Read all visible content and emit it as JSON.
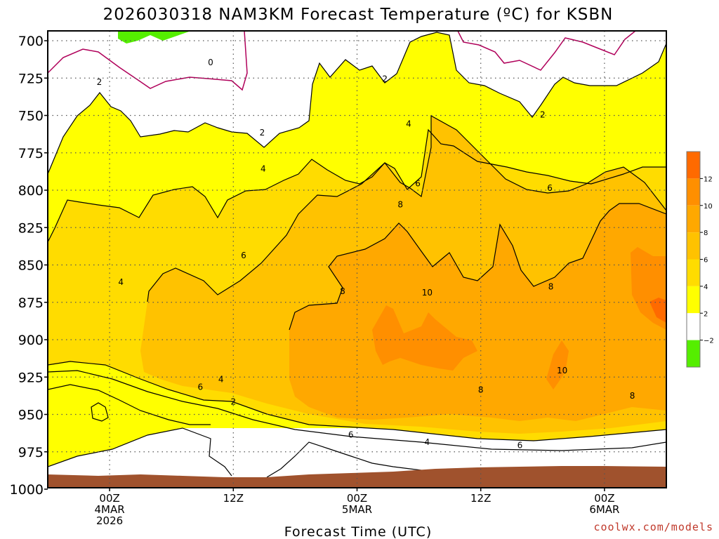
{
  "chart_data": {
    "type": "heatmap",
    "title": "2026030318 NAM3KM Forecast Temperature (ºC) for KSBN",
    "xlabel": "Forecast Time (UTC)",
    "ylabel": "",
    "x_ticks": [
      {
        "hour": 6,
        "lines": [
          "00Z",
          "4MAR",
          "2026"
        ]
      },
      {
        "hour": 18,
        "lines": [
          "12Z"
        ]
      },
      {
        "hour": 30,
        "lines": [
          "00Z",
          "5MAR"
        ]
      },
      {
        "hour": 42,
        "lines": [
          "12Z"
        ]
      },
      {
        "hour": 54,
        "lines": [
          "00Z",
          "6MAR"
        ]
      }
    ],
    "xlim": [
      0,
      60
    ],
    "y_ticks": [
      700,
      725,
      750,
      775,
      800,
      825,
      850,
      875,
      900,
      925,
      950,
      975,
      1000
    ],
    "ylim": [
      700,
      1000
    ],
    "y_inverted": true,
    "grid": true,
    "colorbar": {
      "levels": [
        -2,
        2,
        4,
        6,
        8,
        10,
        12
      ],
      "labels": [
        "12",
        "10",
        "8",
        "6",
        "4",
        "2",
        "−2"
      ],
      "colors_top_to_bottom": [
        "#ff6a00",
        "#ff8f00",
        "#ffa800",
        "#ffc200",
        "#ffdc00",
        "#ffff00",
        "#ffffff",
        "#55ee00"
      ]
    },
    "contour_labels": [
      {
        "text": "0",
        "hour": 15.8,
        "p": 716
      },
      {
        "text": "2",
        "hour": 5.0,
        "p": 729
      },
      {
        "text": "2",
        "hour": 20.8,
        "p": 763
      },
      {
        "text": "2",
        "hour": 32.7,
        "p": 727
      },
      {
        "text": "2",
        "hour": 48.0,
        "p": 751
      },
      {
        "text": "2",
        "hour": 18.0,
        "p": 943
      },
      {
        "text": "4",
        "hour": 20.9,
        "p": 787
      },
      {
        "text": "4",
        "hour": 35.0,
        "p": 757
      },
      {
        "text": "4",
        "hour": 7.1,
        "p": 863
      },
      {
        "text": "4",
        "hour": 16.8,
        "p": 928
      },
      {
        "text": "4",
        "hour": 36.8,
        "p": 970
      },
      {
        "text": "6",
        "hour": 19.0,
        "p": 845
      },
      {
        "text": "6",
        "hour": 35.9,
        "p": 797
      },
      {
        "text": "6",
        "hour": 48.7,
        "p": 800
      },
      {
        "text": "6",
        "hour": 14.8,
        "p": 933
      },
      {
        "text": "6",
        "hour": 29.4,
        "p": 965
      },
      {
        "text": "6",
        "hour": 45.8,
        "p": 972
      },
      {
        "text": "8",
        "hour": 34.2,
        "p": 811
      },
      {
        "text": "8",
        "hour": 28.6,
        "p": 869
      },
      {
        "text": "8",
        "hour": 48.8,
        "p": 866
      },
      {
        "text": "8",
        "hour": 42.0,
        "p": 935
      },
      {
        "text": "8",
        "hour": 56.7,
        "p": 939
      },
      {
        "text": "10",
        "hour": 36.8,
        "p": 870
      },
      {
        "text": "10",
        "hour": 49.9,
        "p": 922
      }
    ],
    "credit": "coolwx.com/models"
  }
}
